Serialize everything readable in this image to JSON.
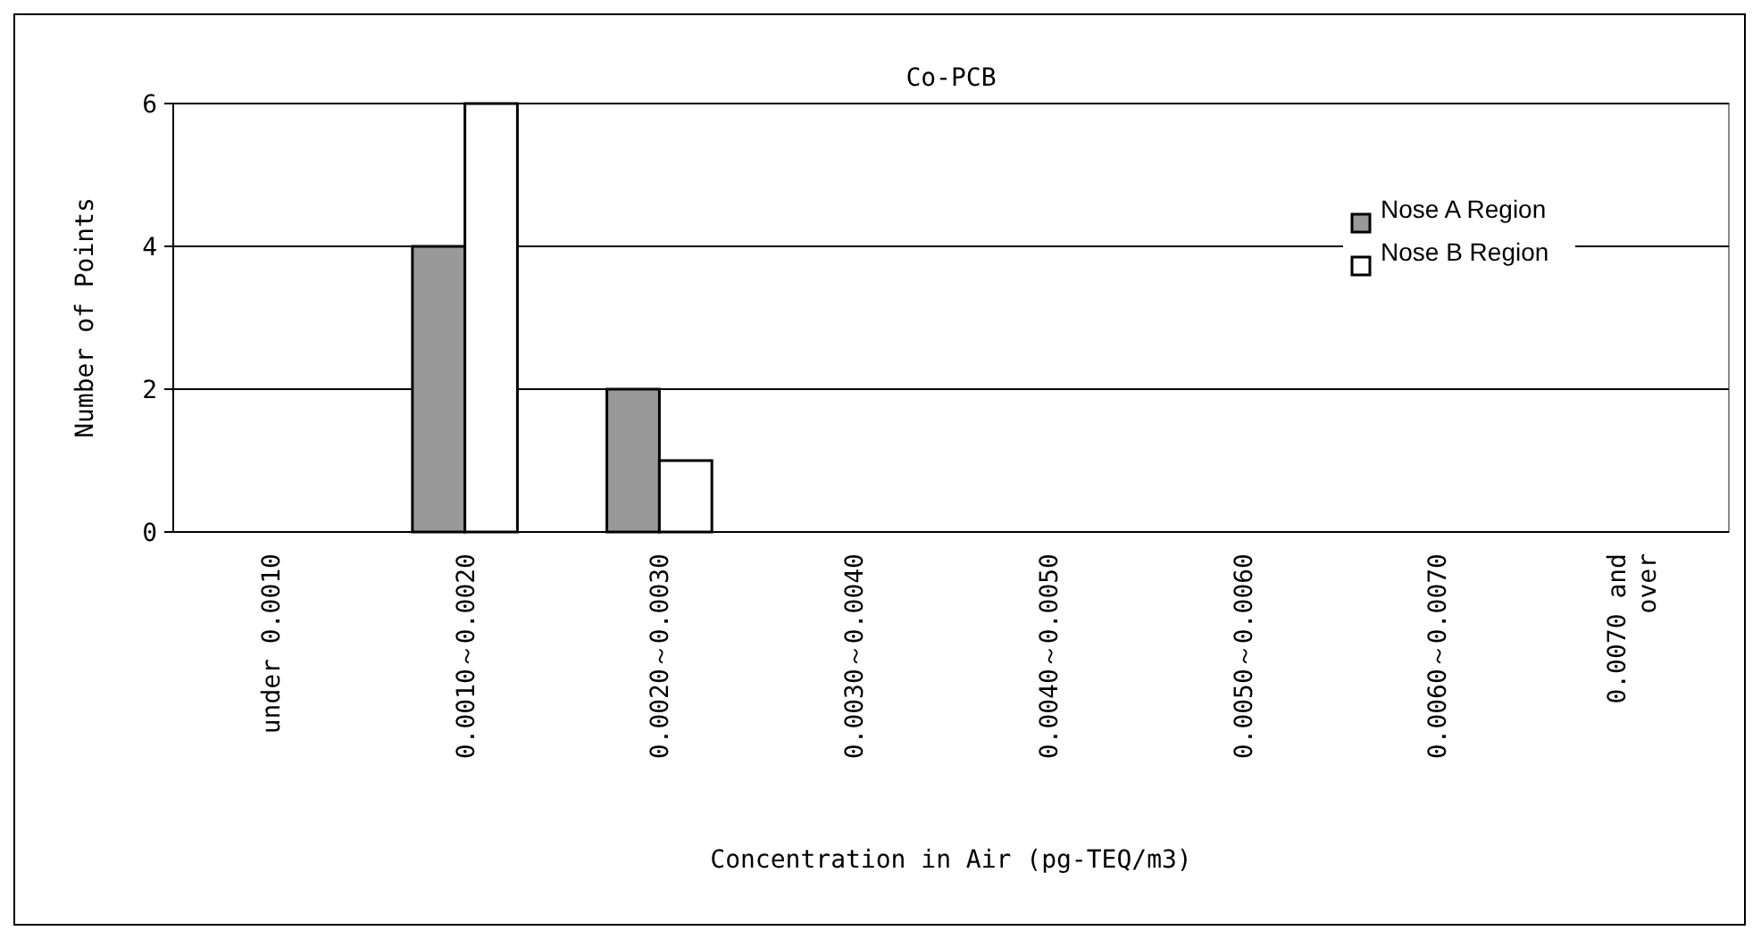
{
  "chart_data": {
    "type": "bar",
    "title": "Co-PCB",
    "xlabel": "Concentration in Air (pg-TEQ/m3)",
    "ylabel": "Number of Points",
    "categories": [
      "under 0.0010",
      "0.0010～0.0020",
      "0.0020～0.0030",
      "0.0030～0.0040",
      "0.0040～0.0050",
      "0.0050～0.0060",
      "0.0060～0.0070",
      "0.0070 and over"
    ],
    "series": [
      {
        "name": "Nose A Region",
        "color": "#999999",
        "values": [
          0,
          4,
          2,
          0,
          0,
          0,
          0,
          0
        ]
      },
      {
        "name": "Nose B Region",
        "color": "#ffffff",
        "values": [
          0,
          6,
          1,
          0,
          0,
          0,
          0,
          0
        ]
      }
    ],
    "ylim": [
      0,
      6
    ],
    "yticks": [
      0,
      2,
      4,
      6
    ],
    "grid": "y",
    "legend": "top right"
  }
}
